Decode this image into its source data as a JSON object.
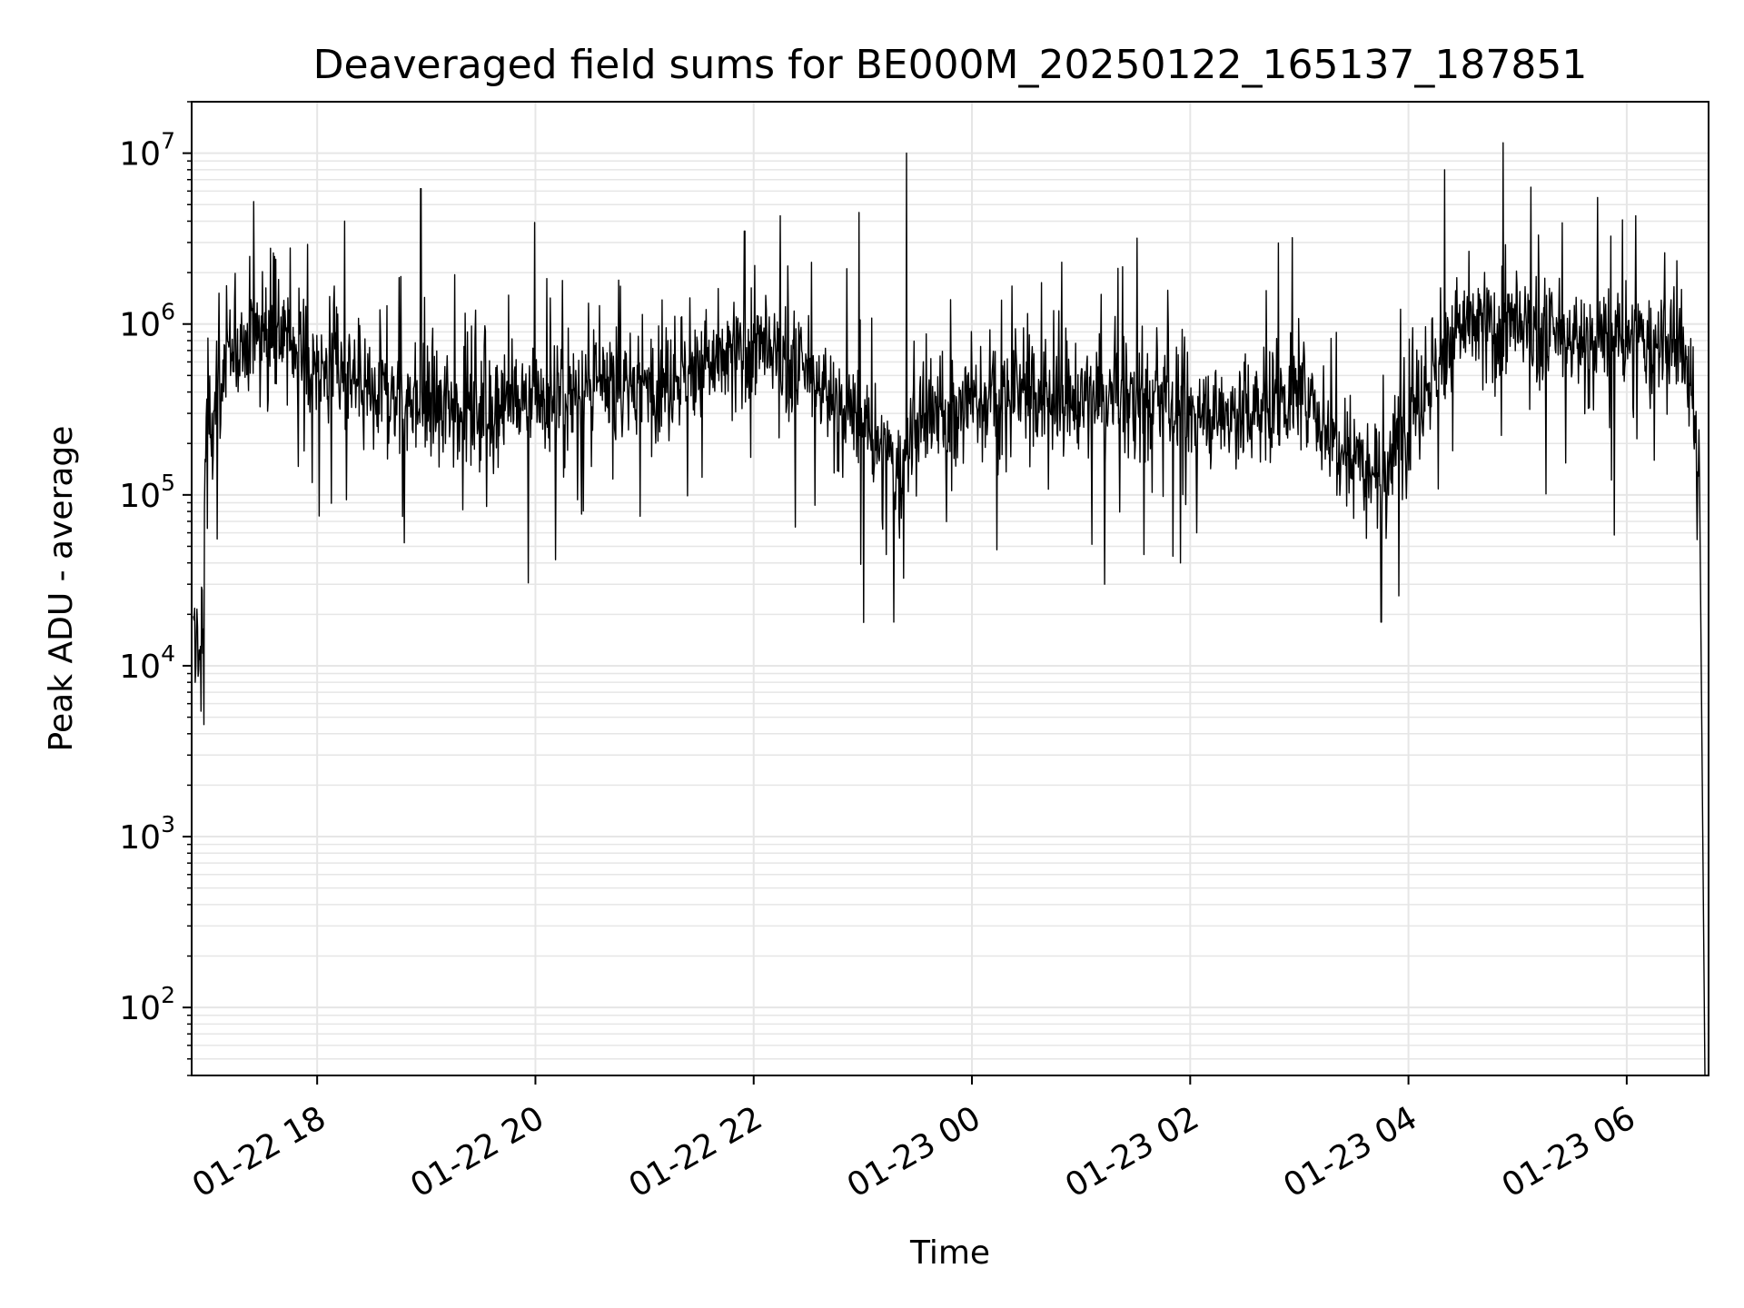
{
  "chart_data": {
    "type": "line",
    "title": "Deaveraged field sums for BE000M_20250122_165137_187851",
    "xlabel": "Time",
    "ylabel": "Peak ADU - average",
    "yscale": "log",
    "ylim": [
      40,
      20000000
    ],
    "xlim": [
      "2025-01-22 16:51",
      "2025-01-23 06:45"
    ],
    "grid": true,
    "x_ticks": [
      {
        "time": "2025-01-22 18:00",
        "label": "01-22 18"
      },
      {
        "time": "2025-01-22 20:00",
        "label": "01-22 20"
      },
      {
        "time": "2025-01-22 22:00",
        "label": "01-22 22"
      },
      {
        "time": "2025-01-23 00:00",
        "label": "01-23 00"
      },
      {
        "time": "2025-01-23 02:00",
        "label": "01-23 02"
      },
      {
        "time": "2025-01-23 04:00",
        "label": "01-23 04"
      },
      {
        "time": "2025-01-23 06:00",
        "label": "01-23 06"
      }
    ],
    "y_ticks": [
      {
        "value": 100,
        "base": "10",
        "exp": "2"
      },
      {
        "value": 1000,
        "base": "10",
        "exp": "3"
      },
      {
        "value": 10000,
        "base": "10",
        "exp": "4"
      },
      {
        "value": 100000,
        "base": "10",
        "exp": "5"
      },
      {
        "value": 1000000,
        "base": "10",
        "exp": "6"
      },
      {
        "value": 10000000,
        "base": "10",
        "exp": "7"
      }
    ],
    "series": [
      {
        "color": "#000000",
        "points": [
          [
            "2025-01-22 16:52",
            12000
          ],
          [
            "2025-01-22 17:00",
            300000
          ],
          [
            "2025-01-22 17:15",
            700000
          ],
          [
            "2025-01-22 17:30",
            1000000
          ],
          [
            "2025-01-22 17:45",
            800000
          ],
          [
            "2025-01-22 18:00",
            550000
          ],
          [
            "2025-01-22 18:30",
            400000
          ],
          [
            "2025-01-22 19:00",
            350000
          ],
          [
            "2025-01-22 19:30",
            330000
          ],
          [
            "2025-01-22 20:00",
            350000
          ],
          [
            "2025-01-22 20:30",
            400000
          ],
          [
            "2025-01-22 21:00",
            450000
          ],
          [
            "2025-01-22 21:30",
            550000
          ],
          [
            "2025-01-22 22:00",
            700000
          ],
          [
            "2025-01-22 22:30",
            500000
          ],
          [
            "2025-01-22 23:00",
            250000
          ],
          [
            "2025-01-22 23:20",
            130000
          ],
          [
            "2025-01-22 23:30",
            250000
          ],
          [
            "2025-01-23 00:00",
            350000
          ],
          [
            "2025-01-23 00:30",
            400000
          ],
          [
            "2025-01-23 01:00",
            350000
          ],
          [
            "2025-01-23 01:30",
            380000
          ],
          [
            "2025-01-23 02:00",
            300000
          ],
          [
            "2025-01-23 02:30",
            300000
          ],
          [
            "2025-01-23 03:00",
            400000
          ],
          [
            "2025-01-23 03:15",
            250000
          ],
          [
            "2025-01-23 03:30",
            180000
          ],
          [
            "2025-01-23 03:50",
            150000
          ],
          [
            "2025-01-23 04:00",
            300000
          ],
          [
            "2025-01-23 04:30",
            1000000
          ],
          [
            "2025-01-23 05:00",
            900000
          ],
          [
            "2025-01-23 05:30",
            800000
          ],
          [
            "2025-01-23 06:00",
            800000
          ],
          [
            "2025-01-23 06:30",
            700000
          ],
          [
            "2025-01-23 06:40",
            200000
          ],
          [
            "2025-01-23 06:43",
            40
          ]
        ],
        "spikes": [
          [
            "2025-01-22 17:25",
            5200000
          ],
          [
            "2025-01-22 18:15",
            4000000
          ],
          [
            "2025-01-22 18:57",
            6200000
          ],
          [
            "2025-01-22 21:55",
            3500000
          ],
          [
            "2025-01-22 22:58",
            4500000
          ],
          [
            "2025-01-22 23:24",
            10000000
          ],
          [
            "2025-01-23 02:56",
            3200000
          ],
          [
            "2025-01-23 04:20",
            8000000
          ],
          [
            "2025-01-23 04:52",
            11500000
          ],
          [
            "2025-01-23 06:05",
            4300000
          ],
          [
            "2025-01-22 23:17",
            18000
          ],
          [
            "2025-01-23 01:13",
            30000
          ],
          [
            "2025-01-23 03:45",
            18000
          ],
          [
            "2025-01-22 16:53",
            8000
          ]
        ]
      }
    ]
  }
}
